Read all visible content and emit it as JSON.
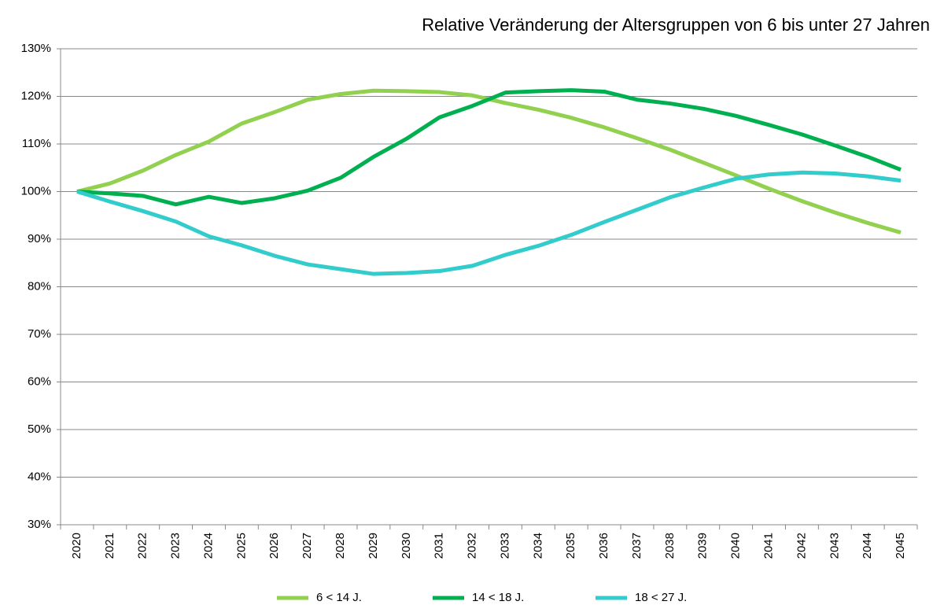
{
  "chart_data": {
    "type": "line",
    "title": "Relative Veränderung der Altersgruppen von 6 bis unter 27 Jahren",
    "categories": [
      "2020",
      "2021",
      "2022",
      "2023",
      "2024",
      "2025",
      "2026",
      "2027",
      "2028",
      "2029",
      "2030",
      "2031",
      "2032",
      "2033",
      "2034",
      "2035",
      "2036",
      "2037",
      "2038",
      "2039",
      "2040",
      "2041",
      "2042",
      "2043",
      "2044",
      "2045"
    ],
    "series": [
      {
        "name": "6 < 14 J.",
        "color": "#92d050",
        "values": [
          100,
          101.7,
          104.4,
          107.7,
          110.5,
          114.3,
          116.7,
          119.3,
          120.5,
          121.2,
          121.1,
          120.9,
          120.2,
          118.6,
          117.2,
          115.5,
          113.5,
          111.2,
          108.8,
          106.1,
          103.4,
          100.6,
          98.0,
          95.6,
          93.4,
          91.4
        ]
      },
      {
        "name": "14 < 18 J.",
        "color": "#00b050",
        "values": [
          100,
          99.6,
          99.1,
          97.3,
          98.9,
          97.6,
          98.6,
          100.2,
          102.9,
          107.3,
          111.1,
          115.6,
          118.0,
          120.8,
          121.1,
          121.3,
          121.0,
          119.3,
          118.5,
          117.4,
          115.9,
          114.0,
          112.0,
          109.7,
          107.3,
          104.6
        ]
      },
      {
        "name": "18 < 27 J.",
        "color": "#33cccc",
        "values": [
          100,
          97.9,
          95.9,
          93.7,
          90.6,
          88.7,
          86.5,
          84.7,
          83.7,
          82.7,
          82.9,
          83.3,
          84.4,
          86.7,
          88.6,
          90.9,
          93.6,
          96.2,
          98.8,
          100.8,
          102.7,
          103.6,
          104.0,
          103.8,
          103.2,
          102.3
        ]
      }
    ],
    "ylim": [
      30,
      130
    ],
    "yticks": [
      {
        "value": 30,
        "label": "30%"
      },
      {
        "value": 40,
        "label": "40%"
      },
      {
        "value": 50,
        "label": "50%"
      },
      {
        "value": 60,
        "label": "60%"
      },
      {
        "value": 70,
        "label": "70%"
      },
      {
        "value": 80,
        "label": "80%"
      },
      {
        "value": 90,
        "label": "90%"
      },
      {
        "value": 100,
        "label": "100%"
      },
      {
        "value": 110,
        "label": "110%"
      },
      {
        "value": 120,
        "label": "120%"
      },
      {
        "value": 130,
        "label": "130%"
      }
    ],
    "grid": true
  }
}
